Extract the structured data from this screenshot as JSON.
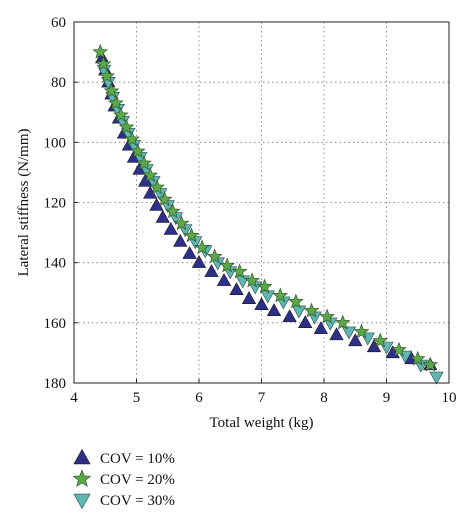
{
  "chart_data": {
    "type": "scatter",
    "title": "",
    "xlabel": "Total weight (kg)",
    "ylabel": "Lateral stiffness (N/mm)",
    "xlim": [
      4,
      10
    ],
    "ylim": [
      60,
      180
    ],
    "y_inverted": true,
    "grid": true,
    "grid_style": "dotted",
    "legend_position": "bottom-left outside",
    "x_ticks": [
      "4",
      "5",
      "6",
      "7",
      "8",
      "9",
      "10"
    ],
    "y_ticks": [
      "60",
      "80",
      "100",
      "120",
      "140",
      "160",
      "180"
    ],
    "series": [
      {
        "name": "COV = 10%",
        "marker": "triangle-up",
        "color": "#2e2f8a",
        "points": [
          [
            4.45,
            72
          ],
          [
            4.5,
            76
          ],
          [
            4.55,
            80
          ],
          [
            4.6,
            84
          ],
          [
            4.65,
            88
          ],
          [
            4.72,
            92
          ],
          [
            4.8,
            97
          ],
          [
            4.88,
            101
          ],
          [
            4.96,
            105
          ],
          [
            5.05,
            109
          ],
          [
            5.14,
            113
          ],
          [
            5.22,
            117
          ],
          [
            5.32,
            121
          ],
          [
            5.42,
            125
          ],
          [
            5.55,
            129
          ],
          [
            5.7,
            133
          ],
          [
            5.85,
            137
          ],
          [
            6.0,
            140
          ],
          [
            6.2,
            143
          ],
          [
            6.4,
            146
          ],
          [
            6.6,
            149
          ],
          [
            6.8,
            152
          ],
          [
            7.0,
            154
          ],
          [
            7.2,
            156
          ],
          [
            7.45,
            158
          ],
          [
            7.7,
            160
          ],
          [
            7.95,
            162
          ],
          [
            8.2,
            164
          ],
          [
            8.5,
            166
          ],
          [
            8.8,
            168
          ],
          [
            9.1,
            170
          ],
          [
            9.4,
            172
          ],
          [
            9.7,
            174
          ]
        ]
      },
      {
        "name": "COV = 20%",
        "marker": "star",
        "color": "#5aa84a",
        "points": [
          [
            4.42,
            70
          ],
          [
            4.47,
            74
          ],
          [
            4.53,
            78
          ],
          [
            4.6,
            83
          ],
          [
            4.67,
            87
          ],
          [
            4.75,
            91
          ],
          [
            4.84,
            95
          ],
          [
            4.93,
            99
          ],
          [
            5.02,
            103
          ],
          [
            5.12,
            107
          ],
          [
            5.22,
            111
          ],
          [
            5.33,
            115
          ],
          [
            5.45,
            119
          ],
          [
            5.58,
            123
          ],
          [
            5.72,
            127
          ],
          [
            5.88,
            131
          ],
          [
            6.05,
            135
          ],
          [
            6.25,
            138
          ],
          [
            6.45,
            141
          ],
          [
            6.65,
            143
          ],
          [
            6.85,
            146
          ],
          [
            7.05,
            148
          ],
          [
            7.3,
            151
          ],
          [
            7.55,
            153
          ],
          [
            7.8,
            156
          ],
          [
            8.05,
            158
          ],
          [
            8.3,
            160
          ],
          [
            8.6,
            163
          ],
          [
            8.9,
            166
          ],
          [
            9.2,
            169
          ],
          [
            9.5,
            172
          ],
          [
            9.7,
            174
          ]
        ]
      },
      {
        "name": "COV = 30%",
        "marker": "triangle-down",
        "color": "#5fb7b3",
        "points": [
          [
            4.48,
            76
          ],
          [
            4.55,
            80
          ],
          [
            4.62,
            85
          ],
          [
            4.7,
            89
          ],
          [
            4.78,
            93
          ],
          [
            4.87,
            97
          ],
          [
            4.96,
            101
          ],
          [
            5.06,
            105
          ],
          [
            5.16,
            109
          ],
          [
            5.27,
            113
          ],
          [
            5.38,
            117
          ],
          [
            5.5,
            121
          ],
          [
            5.63,
            125
          ],
          [
            5.78,
            129
          ],
          [
            5.94,
            133
          ],
          [
            6.1,
            136
          ],
          [
            6.3,
            140
          ],
          [
            6.5,
            143
          ],
          [
            6.7,
            146
          ],
          [
            6.9,
            148
          ],
          [
            7.1,
            151
          ],
          [
            7.35,
            153
          ],
          [
            7.6,
            156
          ],
          [
            7.85,
            158
          ],
          [
            8.1,
            160
          ],
          [
            8.4,
            163
          ],
          [
            8.7,
            165
          ],
          [
            9.0,
            168
          ],
          [
            9.3,
            171
          ],
          [
            9.55,
            174
          ],
          [
            9.8,
            178
          ]
        ]
      }
    ]
  }
}
